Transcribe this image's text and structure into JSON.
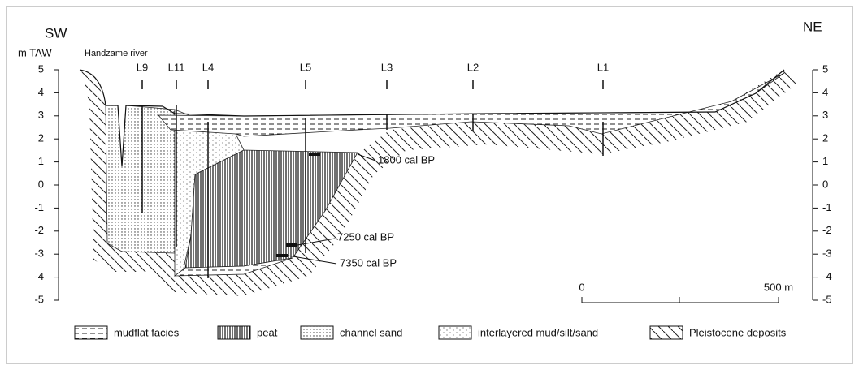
{
  "header": {
    "left": "SW",
    "right": "NE"
  },
  "axis": {
    "unit": "m TAW",
    "ticks": [
      5,
      4,
      3,
      2,
      1,
      0,
      -1,
      -2,
      -3,
      -4,
      -5
    ]
  },
  "river": "Handzame river",
  "boreholes": [
    "L9",
    "L11",
    "L4",
    "L5",
    "L3",
    "L2",
    "L1"
  ],
  "dates": [
    "1800 cal BP",
    "7250 cal BP",
    "7350 cal BP"
  ],
  "scale": {
    "start": "0",
    "end": "500 m"
  },
  "legend": [
    "mudflat facies",
    "peat",
    "channel sand",
    "interlayered mud/silt/sand",
    "Pleistocene deposits"
  ]
}
